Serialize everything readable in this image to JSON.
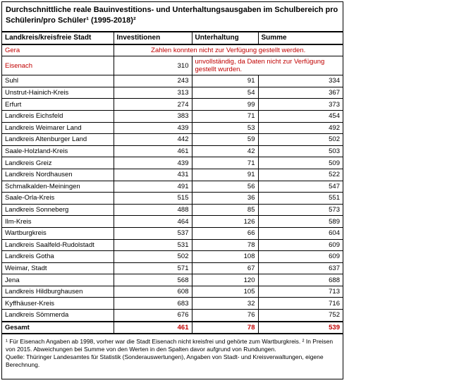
{
  "title": "Durchschnittliche reale Bauinvestitions- und Unterhaltungsausgaben im Schulbereich pro Schülerin/pro Schüler¹ (1995-2018)²",
  "header": [
    "Landkreis/kreisfreie Stadt",
    "Investitionen",
    "Unterhaltung",
    "Summe"
  ],
  "rows": [
    [
      "Gera",
      "Zahlen konnten nicht zur Verfügung gestellt werden."
    ],
    [
      "Eisenach",
      310,
      "unvollständig, da Daten nicht zur Verfügung gestellt wurden."
    ],
    [
      "Suhl",
      243,
      91,
      334
    ],
    [
      "Unstrut-Hainich-Kreis",
      313,
      54,
      367
    ],
    [
      "Erfurt",
      274,
      99,
      373
    ],
    [
      "Landkreis Eichsfeld",
      383,
      71,
      454
    ],
    [
      "Landkreis Weimarer Land",
      439,
      53,
      492
    ],
    [
      "Landkreis Altenburger Land",
      442,
      59,
      502
    ],
    [
      "Saale-Holzland-Kreis",
      461,
      42,
      503
    ],
    [
      "Landkreis Greiz",
      439,
      71,
      509
    ],
    [
      "Landkreis Nordhausen",
      431,
      91,
      522
    ],
    [
      "Schmalkalden-Meiningen",
      491,
      56,
      547
    ],
    [
      "Saale-Orla-Kreis",
      515,
      36,
      551
    ],
    [
      "Landkreis Sonneberg",
      488,
      85,
      573
    ],
    [
      "Ilm-Kreis",
      464,
      126,
      589
    ],
    [
      "Wartburgkreis",
      537,
      66,
      604
    ],
    [
      "Landkreis Saalfeld-Rudolstadt",
      531,
      78,
      609
    ],
    [
      "Landkreis Gotha",
      502,
      108,
      609
    ],
    [
      "Weimar, Stadt",
      571,
      67,
      637
    ],
    [
      "Jena",
      568,
      120,
      688
    ],
    [
      "Landkreis Hildburghausen",
      608,
      105,
      713
    ],
    [
      "Kyffhäuser-Kreis",
      683,
      32,
      716
    ],
    [
      "Landkreis Sömmerda",
      676,
      76,
      752
    ]
  ],
  "total": [
    "Gesamt",
    461,
    78,
    539
  ],
  "footnotes": [
    "¹ Für Eisenach Angaben ab 1998, vorher war die Stadt Eisenach nicht kreisfrei und gehörte zum Wartburgkreis. ² In Preisen von 2015. Abweichungen bei Summe von den Werten in den Spalten davor aufgrund von Rundungen.",
    "Quelle: Thüringer Landesamtes für Statistik (Sonderauswertungen), Angaben von Stadt- und Kreisverwaltungen, eigene Berechnung."
  ]
}
